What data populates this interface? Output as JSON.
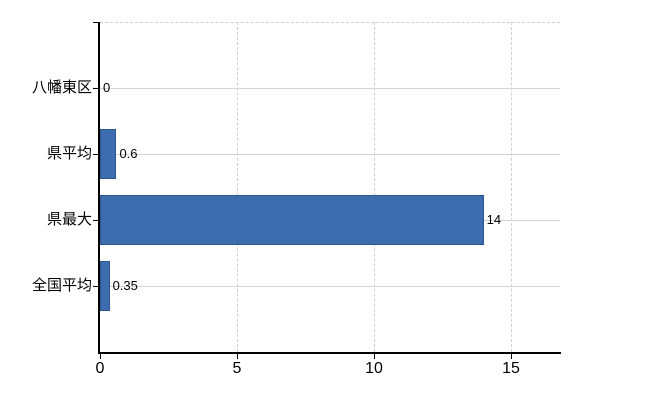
{
  "chart_data": {
    "type": "bar",
    "orientation": "horizontal",
    "title": "",
    "categories": [
      "八幡東区",
      "県平均",
      "県最大",
      "全国平均"
    ],
    "values": [
      0,
      0.6,
      14,
      0.35
    ],
    "value_labels": [
      "0",
      "0.6",
      "14",
      "0.35"
    ],
    "x_ticks": [
      0,
      5,
      10,
      15
    ],
    "x_tick_labels": [
      "0",
      "5",
      "10",
      "15"
    ],
    "xlim": [
      0,
      16.8
    ],
    "legend": "none",
    "grid": {
      "vertical_gridlines": "dashed",
      "horizontal_row_lines": "solid",
      "top_border": "dashed"
    },
    "colors": {
      "bar_fill": "#3e6daf",
      "bar_border": "#2c5791",
      "gridline": "#d3d3d3",
      "axis": "#000000",
      "text": "#000000",
      "background": "#ffffff"
    }
  }
}
